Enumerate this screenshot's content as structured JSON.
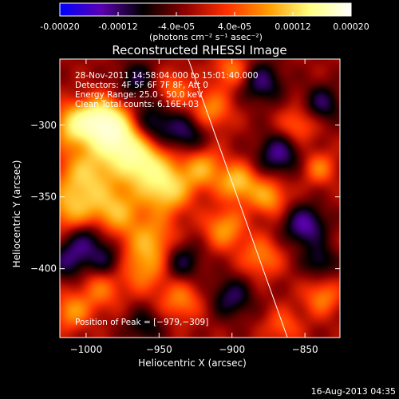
{
  "colorbar": {
    "tick_labels": [
      "-0.00020",
      "-0.00012",
      "-4.0e-05",
      "4.0e-05",
      "0.00012",
      "0.00020"
    ],
    "tick_values": [
      -0.0002,
      -0.00012,
      -4e-05,
      4e-05,
      0.00012,
      0.0002
    ],
    "range": [
      -0.0002,
      0.0002
    ],
    "units_label": "(photons cm⁻² s⁻¹ asec⁻²)",
    "colors": [
      "#0000ff",
      "#5a00b0",
      "#000000",
      "#8b0000",
      "#ff3000",
      "#ff9a00",
      "#ffff80",
      "#ffffff"
    ]
  },
  "chart_data": {
    "type": "heatmap",
    "title": "Reconstructed RHESSI Image",
    "xlabel": "Heliocentric X (arcsec)",
    "ylabel": "Heliocentric Y (arcsec)",
    "xlim": [
      -1018,
      -826
    ],
    "ylim": [
      -448,
      -254
    ],
    "x_ticks": [
      -1000,
      -950,
      -900,
      -850
    ],
    "x_tick_labels": [
      "−1000",
      "−950",
      "−900",
      "−850"
    ],
    "y_ticks": [
      -300,
      -350,
      -400
    ],
    "y_tick_labels": [
      "−300",
      "−350",
      "−400"
    ],
    "annotations": [
      "28-Nov-2011 14:58:04.000 to 15:01:40.000",
      "Detectors: 4F 5F 6F 7F 8F, Att 0",
      "Energy Range: 25.0 - 50.0 keV",
      "Clean     Total counts: 6.16E+03"
    ],
    "peak_label": "Position of Peak = [−979,−309]",
    "peak": [
      -979,
      -309
    ],
    "limb_line": [
      [
        -930,
        -254
      ],
      [
        -862,
        -448
      ]
    ],
    "blobs": [
      [
        -979,
        -309,
        1.0,
        12
      ],
      [
        -990,
        -296,
        0.85,
        10
      ],
      [
        -1008,
        -300,
        0.7,
        10
      ],
      [
        -962,
        -326,
        0.8,
        12
      ],
      [
        -945,
        -344,
        0.72,
        12
      ],
      [
        -1000,
        -335,
        0.6,
        14
      ],
      [
        -1010,
        -360,
        0.5,
        12
      ],
      [
        -980,
        -360,
        0.55,
        12
      ],
      [
        -955,
        -380,
        0.45,
        12
      ],
      [
        -920,
        -330,
        0.5,
        10
      ],
      [
        -896,
        -340,
        0.62,
        9
      ],
      [
        -875,
        -350,
        0.5,
        9
      ],
      [
        -905,
        -372,
        0.48,
        10
      ],
      [
        -880,
        -392,
        0.4,
        10
      ],
      [
        -960,
        -400,
        0.4,
        12
      ],
      [
        -990,
        -415,
        0.35,
        10
      ],
      [
        -1010,
        -430,
        0.45,
        9
      ],
      [
        -935,
        -422,
        0.4,
        10
      ],
      [
        -915,
        -290,
        0.45,
        10
      ],
      [
        -900,
        -262,
        0.4,
        9
      ],
      [
        -855,
        -300,
        0.35,
        9
      ],
      [
        -840,
        -330,
        0.38,
        8
      ],
      [
        -838,
        -420,
        0.4,
        9
      ],
      [
        -865,
        -440,
        0.3,
        9
      ],
      [
        -940,
        -275,
        0.35,
        9
      ],
      [
        -955,
        -300,
        -0.45,
        11
      ],
      [
        -930,
        -305,
        -0.4,
        10
      ],
      [
        -965,
        -268,
        -0.35,
        9
      ],
      [
        -880,
        -270,
        -0.45,
        10
      ],
      [
        -868,
        -320,
        -0.5,
        10
      ],
      [
        -838,
        -285,
        -0.4,
        9
      ],
      [
        -1000,
        -380,
        -0.45,
        11
      ],
      [
        -1012,
        -395,
        -0.35,
        9
      ],
      [
        -935,
        -395,
        -0.4,
        10
      ],
      [
        -850,
        -370,
        -0.55,
        10
      ],
      [
        -840,
        -395,
        -0.35,
        8
      ],
      [
        -900,
        -420,
        -0.4,
        10
      ],
      [
        -960,
        -440,
        -0.3,
        9
      ],
      [
        -985,
        -395,
        -0.3,
        8
      ]
    ]
  },
  "footer": {
    "timestamp": "16-Aug-2013 04:35"
  }
}
